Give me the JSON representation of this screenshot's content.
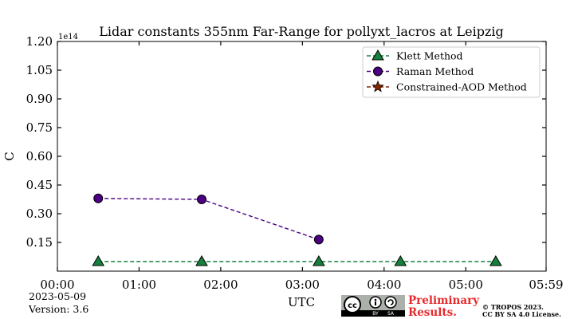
{
  "chart_data": {
    "type": "line",
    "title": "Lidar constants 355nm Far-Range for pollyxt_lacros at Leipzig",
    "xlabel": "UTC",
    "ylabel": "C",
    "y_multiplier_label": "1e14",
    "xlim_hours": [
      0,
      5.9833
    ],
    "ylim": [
      0,
      1.2
    ],
    "x_tick_labels": [
      "00:00",
      "01:00",
      "02:00",
      "03:00",
      "04:00",
      "05:00",
      "05:59"
    ],
    "x_tick_hours": [
      0,
      1,
      2,
      3,
      4,
      5,
      5.9833
    ],
    "y_ticks": [
      0.15,
      0.3,
      0.45,
      0.6,
      0.75,
      0.9,
      1.05,
      1.2
    ],
    "y_tick_labels": [
      "0.15",
      "0.30",
      "0.45",
      "0.60",
      "0.75",
      "0.90",
      "1.05",
      "1.20"
    ],
    "legend_position": "upper-right",
    "grid": false,
    "series": [
      {
        "name": "Klett Method",
        "color": "#15803d",
        "marker": "triangle",
        "x": [
          "00:30",
          "01:46",
          "03:12",
          "04:12",
          "05:32"
        ],
        "x_hours": [
          0.5,
          1.7667,
          3.2,
          4.2,
          5.3667
        ],
        "values": [
          0.05,
          0.05,
          0.05,
          0.05,
          0.05
        ]
      },
      {
        "name": "Raman Method",
        "color": "#4b0082",
        "marker": "circle",
        "x": [
          "00:30",
          "01:46",
          "03:12"
        ],
        "x_hours": [
          0.5,
          1.7667,
          3.2
        ],
        "values": [
          0.38,
          0.375,
          0.165
        ]
      },
      {
        "name": "Constrained-AOD Method",
        "color": "#8b2500",
        "marker": "star",
        "x": [],
        "x_hours": [],
        "values": []
      }
    ]
  },
  "footer": {
    "date": "2023-05-09",
    "version": "Version: 3.6",
    "preliminary": "Preliminary",
    "results": "Results.",
    "copyright": "© TROPOS 2023.",
    "license": "CC BY SA 4.0 License.",
    "cc_badge_labels": [
      "cc",
      "BY",
      "SA"
    ]
  }
}
